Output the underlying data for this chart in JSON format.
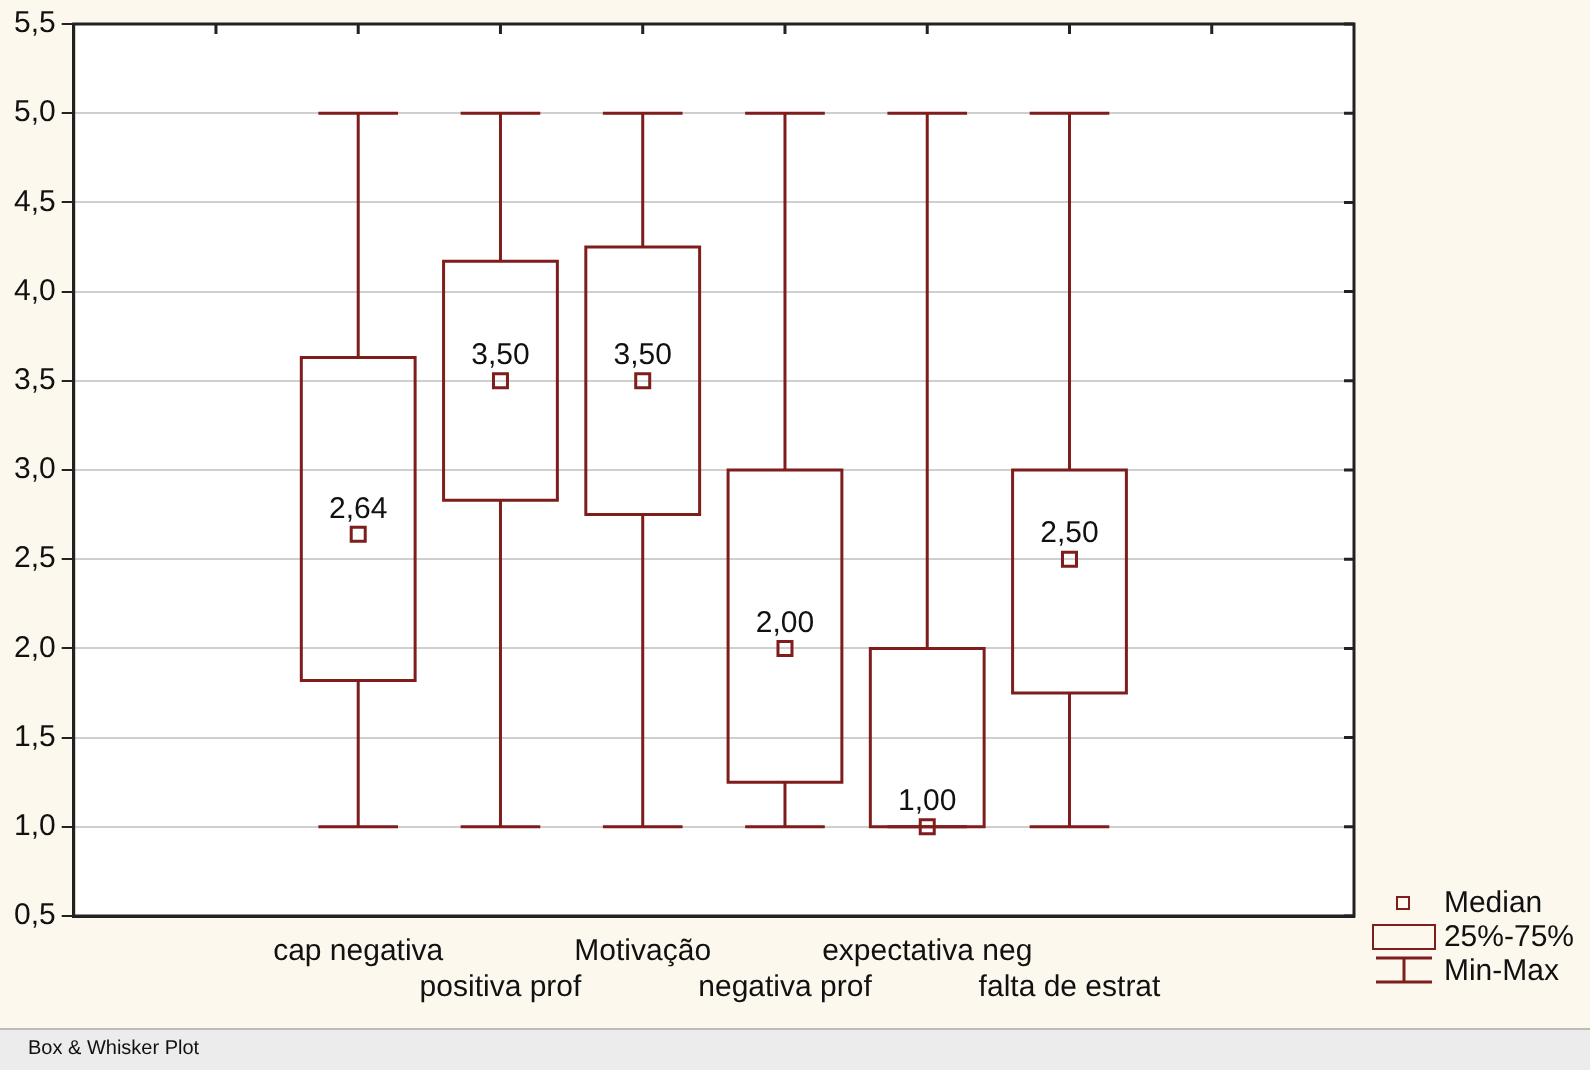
{
  "chart_data": {
    "type": "box",
    "categories": [
      null,
      "cap negativa",
      "positiva prof",
      "Motivação",
      "negativa prof",
      "expectativa neg",
      "falta de estrat",
      null
    ],
    "series": [
      {
        "color": "#7f1d1d",
        "boxes": [
          null,
          {
            "low": 1,
            "q1": 1.82,
            "median": 2.64,
            "q3": 3.63,
            "high": 5
          },
          {
            "low": 1,
            "q1": 2.83,
            "median": 3.5,
            "q3": 4.17,
            "high": 5
          },
          {
            "low": 1,
            "q1": 2.75,
            "median": 3.5,
            "q3": 4.25,
            "high": 5
          },
          {
            "low": 1,
            "q1": 1.25,
            "median": 2.0,
            "q3": 3.0,
            "high": 5
          },
          {
            "low": 1,
            "q1": 1.0,
            "median": 1.0,
            "q3": 2.0,
            "high": 5
          },
          {
            "low": 1,
            "q1": 1.75,
            "median": 2.5,
            "q3": 3.0,
            "high": 5
          },
          null
        ]
      }
    ],
    "value_labels": [
      null,
      "2,64",
      "3,50",
      "3,50",
      "2,00",
      "1,00",
      "2,50",
      null
    ],
    "ylim": [
      0.5,
      5.5
    ],
    "yticks": [
      {
        "value": 0.5,
        "label": "0,5"
      },
      {
        "value": 1,
        "label": "1,0"
      },
      {
        "value": 1.5,
        "label": "1,5"
      },
      {
        "value": 2,
        "label": "2,0"
      },
      {
        "value": 2.5,
        "label": "2,5"
      },
      {
        "value": 3,
        "label": "3,0"
      },
      {
        "value": 3.5,
        "label": "3,5"
      },
      {
        "value": 4,
        "label": "4,0"
      },
      {
        "value": 4.5,
        "label": "4,5"
      },
      {
        "value": 5,
        "label": "5,0"
      },
      {
        "value": 5.5,
        "label": "5,5"
      }
    ],
    "grid": "y",
    "annotations": [
      "Median",
      "25%-75%",
      "Min-Max",
      "Box & Whisker Plot"
    ]
  }
}
